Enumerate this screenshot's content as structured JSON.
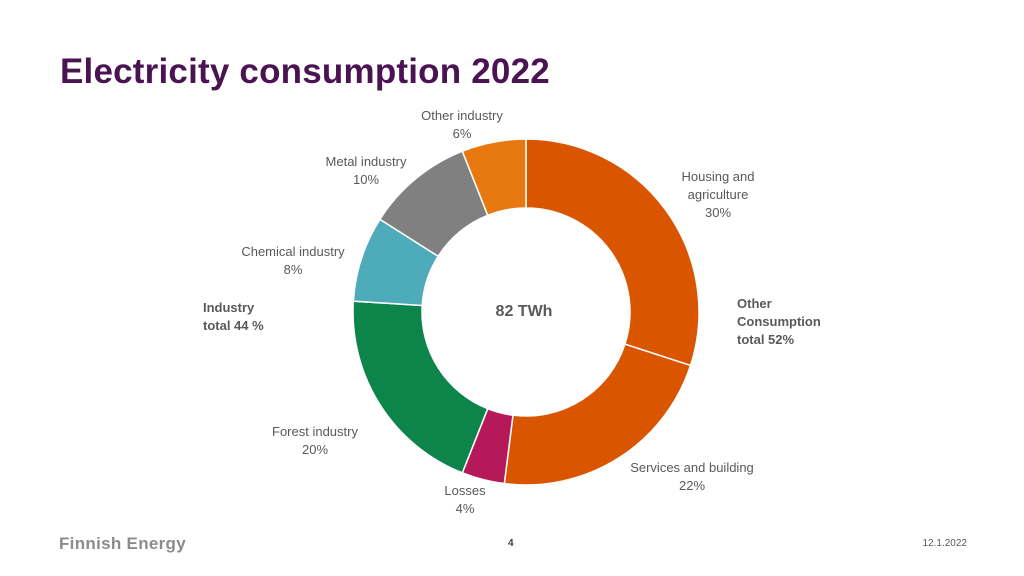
{
  "title": "Electricity consumption 2022",
  "chart_data": {
    "type": "pie",
    "subtype": "donut",
    "center_label": "82 TWh",
    "slices": [
      {
        "name": "Housing and agriculture",
        "label_lines": [
          "Housing and",
          "agriculture"
        ],
        "value": 30,
        "pct": "30%",
        "color": "#d95500"
      },
      {
        "name": "Services and building",
        "label_lines": [
          "Services and building"
        ],
        "value": 22,
        "pct": "22%",
        "color": "#d95500"
      },
      {
        "name": "Losses",
        "label_lines": [
          "Losses"
        ],
        "value": 4,
        "pct": "4%",
        "color": "#b5195a"
      },
      {
        "name": "Forest industry",
        "label_lines": [
          "Forest industry"
        ],
        "value": 20,
        "pct": "20%",
        "color": "#0d844a"
      },
      {
        "name": "Chemical industry",
        "label_lines": [
          "Chemical industry"
        ],
        "value": 8,
        "pct": "8%",
        "color": "#4eacba"
      },
      {
        "name": "Metal industry",
        "label_lines": [
          "Metal industry"
        ],
        "value": 10,
        "pct": "10%",
        "color": "#808080"
      },
      {
        "name": "Other industry",
        "label_lines": [
          "Other industry"
        ],
        "value": 6,
        "pct": "6%",
        "color": "#e87810"
      }
    ],
    "group_labels": [
      {
        "lines": [
          "Industry",
          "total 44 %"
        ]
      },
      {
        "lines": [
          "Other",
          "Consumption",
          "total 52%"
        ]
      }
    ]
  },
  "footer": {
    "logo_text": "Finnish Energy",
    "page_number": "4",
    "date": "12.1.2022"
  }
}
